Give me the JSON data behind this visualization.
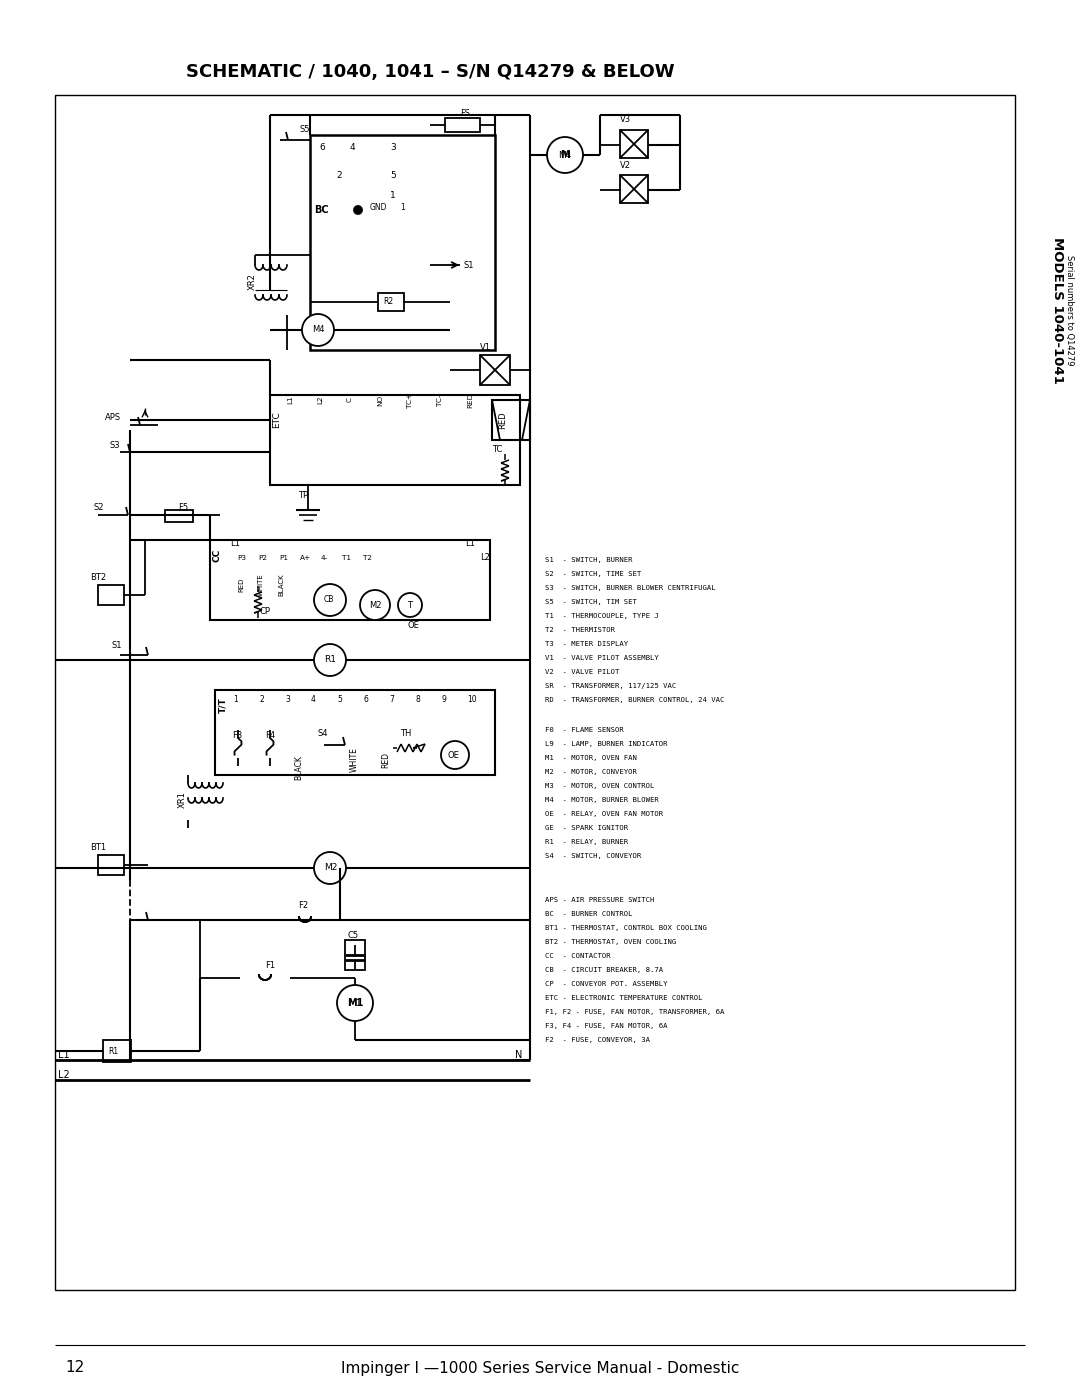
{
  "title": "SCHEMATIC / 1040, 1041 – S/N Q14279 & BELOW",
  "page_number": "12",
  "footer_text": "Impinger I —1000 Series Service Manual - Domestic",
  "sidebar_text": "MODELS 1040-1041",
  "sidebar_sub": "Serial numbers to Q14279",
  "bg_color": "#ffffff",
  "lc": "#000000",
  "figsize": [
    10.8,
    13.97
  ],
  "dpi": 100,
  "legend_upper_right": [
    "S1  - SWITCH, BURNER",
    "S2  - SWITCH, TIME SET",
    "S3  - SWITCH, BURNER BLOWER CENTRIFUGAL",
    "S5  - SWITCH, TIM SET",
    "T1  - THERMOCOUPLE, TYPE J",
    "T2  - THERMISTOR",
    "T3  - METER DISPLAY",
    "V1  - VALVE PILOT ASSEMBLY",
    "V2  - VALVE PILOT",
    "SR  - TRANSFORMER, 117/125 VAC",
    "RD  - TRANSFORMER, BURNER CONTROL, 24 VAC"
  ],
  "legend_lower_right": [
    "F0  - FLAME SENSOR",
    "L9  - LAMP, BURNER INDICATOR",
    "M1  - MOTOR, OVEN FAN",
    "M2  - MOTOR, CONVEYOR",
    "M3  - MOTOR, OVEN CONTROL",
    "M4  - MOTOR, BURNER BLOWER",
    "OE  - RELAY, OVEN FAN MOTOR",
    "GE  - SPARK IGNITOR",
    "R1  - RELAY, BURNER",
    "S4  - SWITCH, CONVEYOR"
  ],
  "legend_bottom": [
    "APS - AIR PRESSURE SWITCH",
    "BC  - BURNER CONTROL",
    "BT1 - THERMOSTAT, CONTROL BOX COOLING",
    "BT2 - THERMOSTAT, OVEN COOLING",
    "CC  - CONTACTOR",
    "CB  - CIRCUIT BREAKER, 8.7A",
    "CP  - CONVEYOR POT. ASSEMBLY",
    "ETC - ELECTRONIC TEMPERATURE CONTROL",
    "F1, F2 - FUSE, FAN MOTOR, TRANSFORMER, 6A",
    "F3, F4 - FUSE, FAN MOTOR, 6A",
    "F2  - FUSE, CONVEYOR, 3A"
  ]
}
